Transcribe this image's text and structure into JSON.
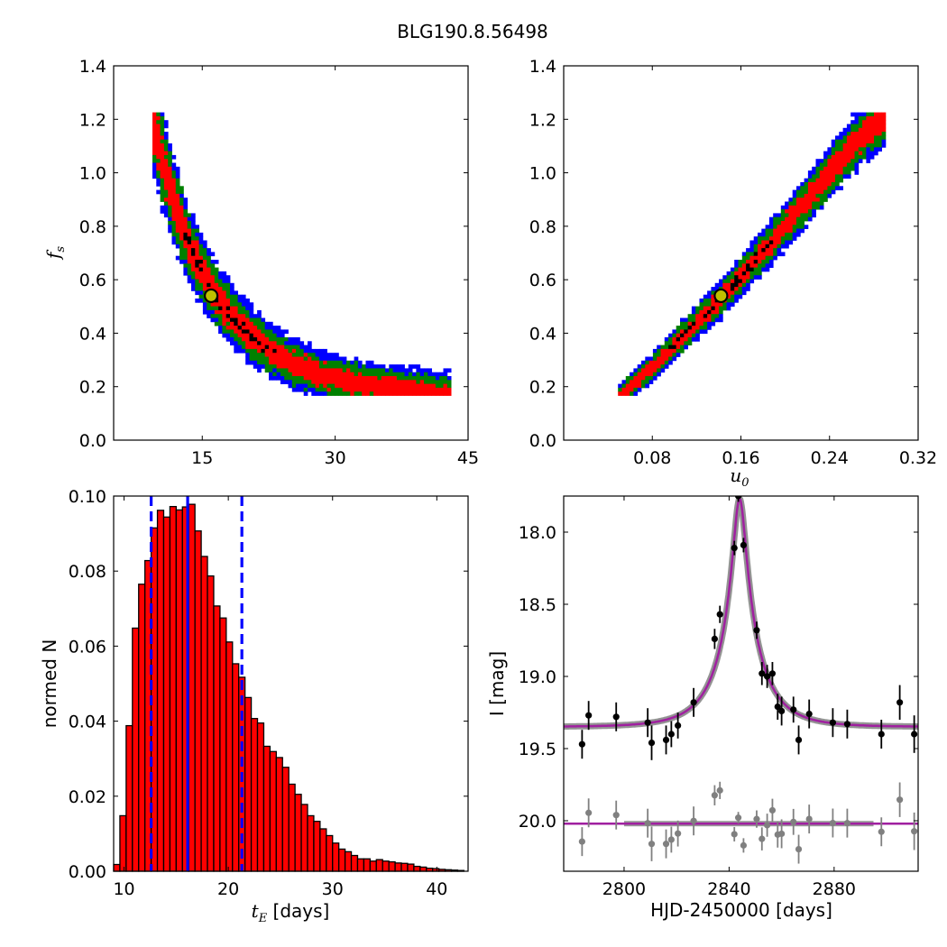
{
  "figure": {
    "title": "BLG190.8.56498"
  },
  "colors": {
    "sigma3": "#0000ff",
    "sigma2": "#008000",
    "sigma1": "#ff0000",
    "best": "#000000",
    "marker_face": "#bfbf00",
    "hist_fill": "#ff0000",
    "vline": "#0000ff",
    "model": "#a020a0",
    "model_band": "#808080",
    "residuals": "#808080",
    "data": "#000000"
  },
  "chart_data": [
    {
      "id": "tE_fs",
      "type": "heatmap",
      "xlabel_var": "",
      "ylabel_var": "f",
      "ylabel_sub": "s",
      "xlim": [
        5,
        45
      ],
      "ylim": [
        0,
        1.4
      ],
      "xticks": [
        15,
        30,
        45
      ],
      "yticks": [
        0.0,
        0.2,
        0.4,
        0.6,
        0.8,
        1.0,
        1.2,
        1.4
      ],
      "yticklabels": [
        "0.0",
        "0.2",
        "0.4",
        "0.6",
        "0.8",
        "1.0",
        "1.2",
        "1.4"
      ],
      "levels": [
        "3-sigma",
        "2-sigma",
        "1-sigma",
        "best"
      ],
      "ridge": [
        [
          9.3,
          1.22
        ],
        [
          10.5,
          1.05
        ],
        [
          11.5,
          0.92
        ],
        [
          12.5,
          0.82
        ],
        [
          13.5,
          0.73
        ],
        [
          14.5,
          0.66
        ],
        [
          16,
          0.57
        ],
        [
          17.5,
          0.5
        ],
        [
          19,
          0.44
        ],
        [
          21,
          0.38
        ],
        [
          23,
          0.33
        ],
        [
          25,
          0.29
        ],
        [
          28,
          0.25
        ],
        [
          31,
          0.22
        ],
        [
          35,
          0.2
        ],
        [
          39,
          0.185
        ],
        [
          43,
          0.17
        ]
      ],
      "best_fit": {
        "x": 16.0,
        "y": 0.54
      }
    },
    {
      "id": "u0_fs",
      "type": "heatmap",
      "xlabel_var": "u",
      "xlabel_sub": "0",
      "ylabel_var": "",
      "xlim": [
        0.0,
        0.32
      ],
      "ylim": [
        0,
        1.4
      ],
      "xticks": [
        0.08,
        0.16,
        0.24,
        0.32
      ],
      "xticklabels": [
        "0.08",
        "0.16",
        "0.24",
        "0.32"
      ],
      "yticks": [
        0.0,
        0.2,
        0.4,
        0.6,
        0.8,
        1.0,
        1.2,
        1.4
      ],
      "yticklabels": [
        "0.0",
        "0.2",
        "0.4",
        "0.6",
        "0.8",
        "1.0",
        "1.2",
        "1.4"
      ],
      "ridge": [
        [
          0.05,
          0.16
        ],
        [
          0.08,
          0.27
        ],
        [
          0.11,
          0.4
        ],
        [
          0.14,
          0.52
        ],
        [
          0.17,
          0.66
        ],
        [
          0.2,
          0.8
        ],
        [
          0.23,
          0.95
        ],
        [
          0.26,
          1.1
        ],
        [
          0.29,
          1.22
        ]
      ],
      "best_fit": {
        "x": 0.142,
        "y": 0.54
      }
    },
    {
      "id": "tE_hist",
      "type": "bar",
      "xlabel_var": "t",
      "xlabel_sub": "E",
      "xlabel_unit": "[days]",
      "ylabel": "normed N",
      "xlim": [
        9,
        43
      ],
      "ylim": [
        0,
        0.1
      ],
      "xticks": [
        10,
        20,
        30,
        40
      ],
      "yticks": [
        0.0,
        0.02,
        0.04,
        0.06,
        0.08,
        0.1
      ],
      "yticklabels": [
        "0.00",
        "0.02",
        "0.04",
        "0.06",
        "0.08",
        "0.10"
      ],
      "bin_start": 9,
      "bin_width": 0.6,
      "values": [
        0.0018,
        0.0148,
        0.0388,
        0.0648,
        0.0765,
        0.0828,
        0.0915,
        0.0962,
        0.0944,
        0.0972,
        0.0963,
        0.0971,
        0.0978,
        0.0907,
        0.0839,
        0.0787,
        0.0707,
        0.0675,
        0.0611,
        0.0553,
        0.0517,
        0.0463,
        0.0407,
        0.0395,
        0.0333,
        0.0319,
        0.0303,
        0.0277,
        0.0232,
        0.0205,
        0.0178,
        0.0148,
        0.0133,
        0.0113,
        0.0095,
        0.0075,
        0.0059,
        0.0052,
        0.0042,
        0.0033,
        0.0033,
        0.0027,
        0.0031,
        0.0027,
        0.0025,
        0.0022,
        0.0021,
        0.0019,
        0.0013,
        0.0011,
        0.0008,
        0.0007,
        0.0005,
        0.0004,
        0.0003,
        0.0002
      ],
      "vlines": [
        {
          "x": 12.6,
          "style": "dashed"
        },
        {
          "x": 16.1,
          "style": "solid"
        },
        {
          "x": 21.3,
          "style": "dashed"
        }
      ]
    },
    {
      "id": "lightcurve",
      "type": "scatter",
      "xlabel": "HJD-2450000 [days]",
      "ylabel": "I [mag]",
      "xlim": [
        2777,
        2912
      ],
      "ylim": [
        20.35,
        17.75
      ],
      "xticks": [
        2800,
        2840,
        2880
      ],
      "yticks": [
        18.0,
        18.5,
        19.0,
        19.5,
        20.0
      ],
      "yticklabels": [
        "18.0",
        "18.5",
        "19.0",
        "19.5",
        "20.0"
      ],
      "model": {
        "t0": 2844.0,
        "tE": 16.0,
        "u0": 0.142,
        "fs": 0.54,
        "baseline": 19.35
      },
      "residual_offset": 20.02,
      "points": [
        {
          "t": 2784.0,
          "mag": 19.47,
          "err": 0.1
        },
        {
          "t": 2786.5,
          "mag": 19.27,
          "err": 0.1
        },
        {
          "t": 2797.0,
          "mag": 19.28,
          "err": 0.1
        },
        {
          "t": 2809.0,
          "mag": 19.32,
          "err": 0.1
        },
        {
          "t": 2810.5,
          "mag": 19.46,
          "err": 0.12
        },
        {
          "t": 2816.0,
          "mag": 19.44,
          "err": 0.1
        },
        {
          "t": 2818.0,
          "mag": 19.4,
          "err": 0.09
        },
        {
          "t": 2820.5,
          "mag": 19.34,
          "err": 0.09
        },
        {
          "t": 2826.5,
          "mag": 19.18,
          "err": 0.1
        },
        {
          "t": 2834.5,
          "mag": 18.74,
          "err": 0.07
        },
        {
          "t": 2836.5,
          "mag": 18.57,
          "err": 0.06
        },
        {
          "t": 2842.0,
          "mag": 18.11,
          "err": 0.05
        },
        {
          "t": 2843.5,
          "mag": 17.75,
          "err": 0.04
        },
        {
          "t": 2845.5,
          "mag": 18.09,
          "err": 0.05
        },
        {
          "t": 2850.5,
          "mag": 18.68,
          "err": 0.06
        },
        {
          "t": 2852.5,
          "mag": 18.98,
          "err": 0.08
        },
        {
          "t": 2854.5,
          "mag": 19.0,
          "err": 0.08
        },
        {
          "t": 2856.5,
          "mag": 18.98,
          "err": 0.08
        },
        {
          "t": 2858.5,
          "mag": 19.21,
          "err": 0.09
        },
        {
          "t": 2860.0,
          "mag": 19.24,
          "err": 0.1
        },
        {
          "t": 2864.5,
          "mag": 19.23,
          "err": 0.09
        },
        {
          "t": 2866.5,
          "mag": 19.44,
          "err": 0.1
        },
        {
          "t": 2870.5,
          "mag": 19.26,
          "err": 0.1
        },
        {
          "t": 2879.5,
          "mag": 19.32,
          "err": 0.1
        },
        {
          "t": 2885.0,
          "mag": 19.33,
          "err": 0.1
        },
        {
          "t": 2898.0,
          "mag": 19.4,
          "err": 0.1
        },
        {
          "t": 2905.0,
          "mag": 19.18,
          "err": 0.12
        },
        {
          "t": 2910.5,
          "mag": 19.4,
          "err": 0.13
        }
      ]
    }
  ]
}
